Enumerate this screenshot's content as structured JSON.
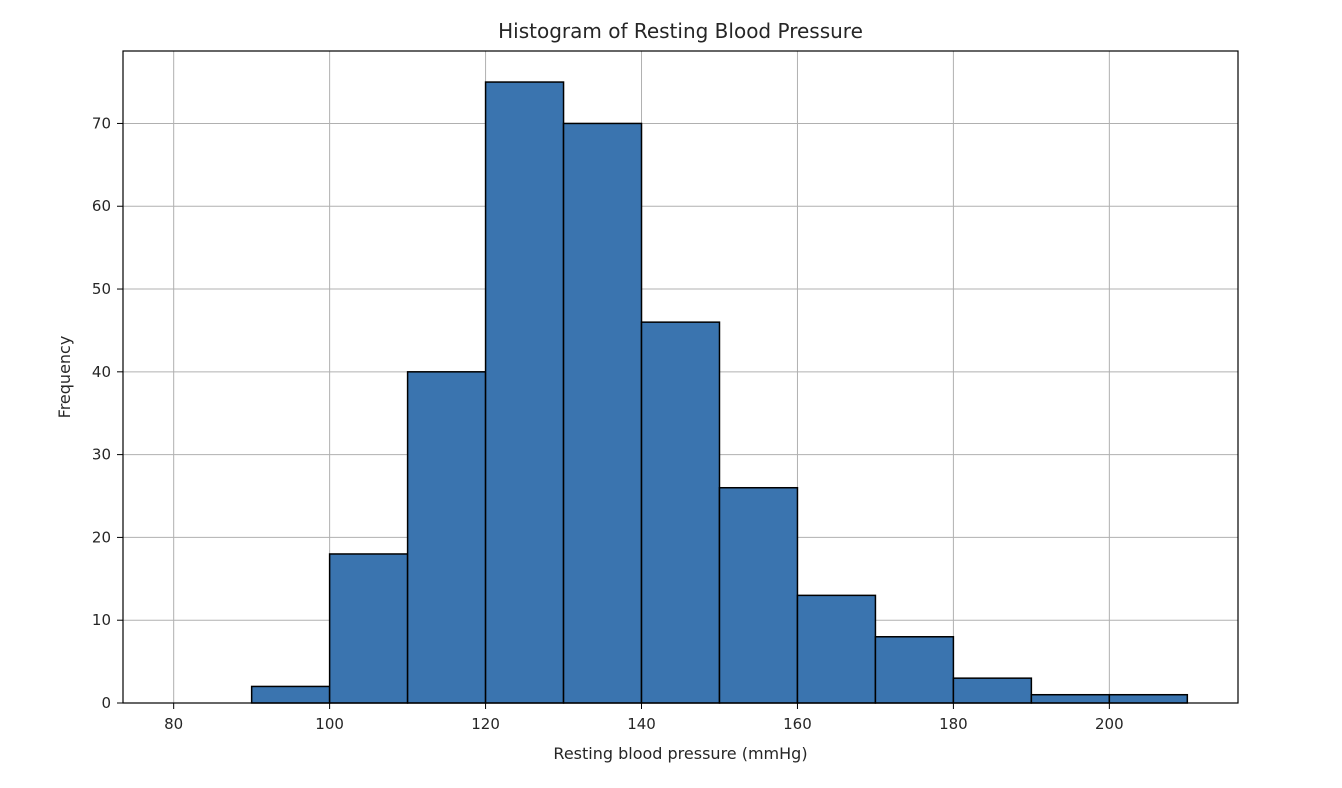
{
  "chart_data": {
    "type": "bar",
    "title": "Histogram of Resting Blood Pressure",
    "xlabel": "Resting blood pressure (mmHg)",
    "ylabel": "Frequency",
    "bins": [
      {
        "start": 90,
        "end": 100,
        "count": 2
      },
      {
        "start": 100,
        "end": 110,
        "count": 18
      },
      {
        "start": 110,
        "end": 120,
        "count": 40
      },
      {
        "start": 120,
        "end": 130,
        "count": 75
      },
      {
        "start": 130,
        "end": 140,
        "count": 70
      },
      {
        "start": 140,
        "end": 150,
        "count": 46
      },
      {
        "start": 150,
        "end": 160,
        "count": 26
      },
      {
        "start": 160,
        "end": 170,
        "count": 13
      },
      {
        "start": 170,
        "end": 180,
        "count": 8
      },
      {
        "start": 180,
        "end": 190,
        "count": 3
      },
      {
        "start": 190,
        "end": 200,
        "count": 1
      },
      {
        "start": 200,
        "end": 210,
        "count": 1
      }
    ],
    "xlim": [
      73.5,
      216.5
    ],
    "ylim": [
      0,
      78.75
    ],
    "xticks": [
      "80",
      "100",
      "120",
      "140",
      "160",
      "180",
      "200"
    ],
    "yticks": [
      "0",
      "10",
      "20",
      "30",
      "40",
      "50",
      "60",
      "70"
    ],
    "grid": true,
    "bar_color": "#3A74AF",
    "edge_color": "#000000",
    "grid_color": "#B0B0B0"
  }
}
